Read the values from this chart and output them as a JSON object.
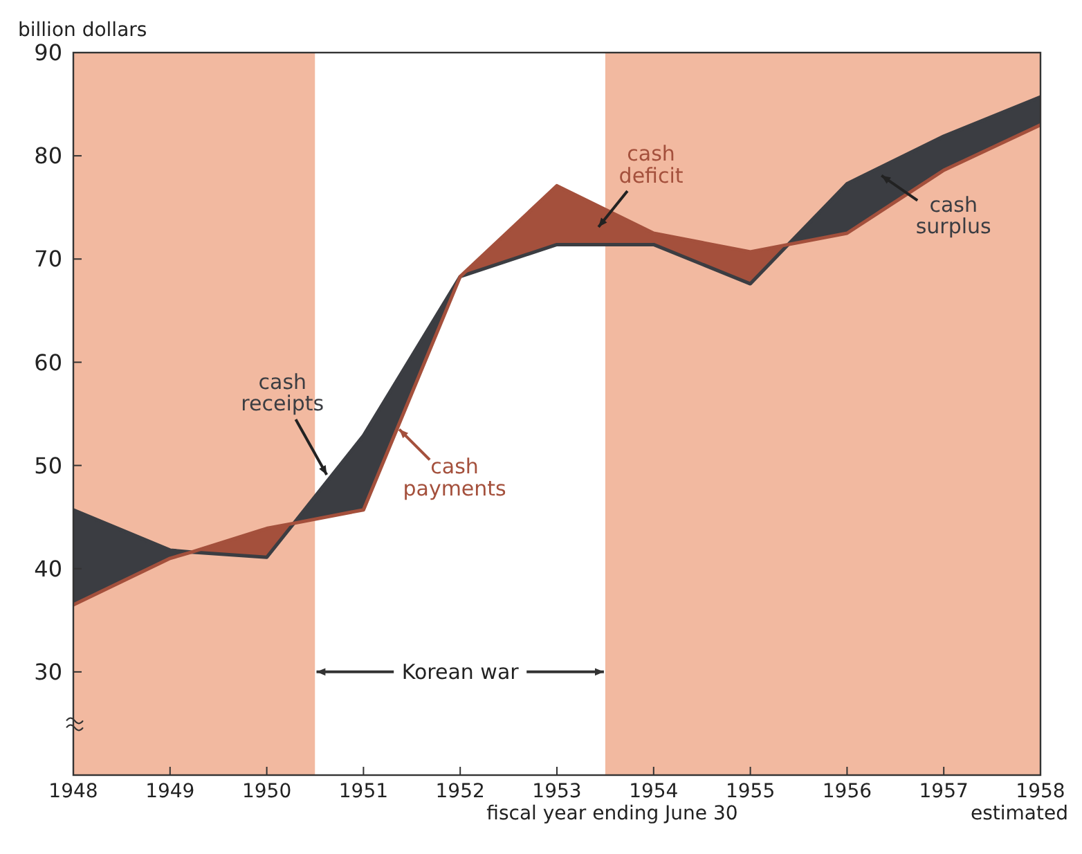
{
  "chart_data": {
    "type": "line",
    "ylabel": "billion dollars",
    "xlabel": "fiscal year ending June 30",
    "x": [
      1948,
      1949,
      1949.22,
      1950,
      1950.28,
      1951,
      1952,
      1953,
      1954,
      1955,
      1955.39,
      1956,
      1957,
      1958
    ],
    "series": [
      {
        "color": "#3b3d42",
        "values": [
          45.7,
          41.8,
          41.6,
          41.1,
          44.4,
          52.9,
          68.3,
          71.4,
          71.4,
          67.6,
          71.4,
          77.3,
          81.9,
          85.7
        ],
        "upper": [
          45.7,
          41.8,
          41.6,
          null,
          44.4,
          52.9,
          68.3,
          null,
          null,
          null,
          71.4,
          77.3,
          81.9,
          85.7
        ],
        "lower": [
          36.5,
          41.0,
          41.6,
          null,
          44.4,
          45.7,
          68.3,
          null,
          null,
          null,
          71.4,
          72.5,
          78.6,
          83.0
        ]
      },
      {
        "color": "#a4503c",
        "values": [
          36.5,
          41.0,
          41.6,
          43.9,
          44.4,
          45.7,
          68.3,
          77.1,
          72.5,
          70.7,
          71.4,
          72.5,
          78.6,
          83.0
        ],
        "upper": [
          null,
          null,
          41.6,
          43.9,
          44.4,
          null,
          68.3,
          77.1,
          72.5,
          70.7,
          71.4,
          null,
          null,
          null
        ],
        "lower": [
          null,
          null,
          41.6,
          41.1,
          44.4,
          null,
          68.3,
          71.4,
          71.4,
          67.6,
          71.4,
          null,
          null,
          null
        ]
      }
    ],
    "xlim": [
      1948,
      1958
    ],
    "xticks": [
      1948,
      1949,
      1950,
      1951,
      1952,
      1953,
      1954,
      1955,
      1956,
      1957,
      1958
    ],
    "ylim": [
      20,
      90
    ],
    "yticks": [
      30,
      40,
      50,
      60,
      70,
      80,
      90
    ],
    "grid": false,
    "bands": [
      {
        "axis": "x",
        "from": 1948,
        "to": 1950.5,
        "color": "#f2b9a0"
      },
      {
        "axis": "x",
        "from": 1950.5,
        "to": 1953.5,
        "color": "#ffffff",
        "label": "Korean war"
      },
      {
        "axis": "x",
        "from": 1953.5,
        "to": 1958,
        "color": "#f2b9a0"
      }
    ],
    "annotations": [
      {
        "text": "cash receipts",
        "x": 1950.62,
        "y": 49.1
      },
      {
        "text": "cash payments",
        "x": 1951.37,
        "y": 53.5
      },
      {
        "text": "cash deficit",
        "x": 1953.43,
        "y": 73.1
      },
      "cash surplus",
      "estimated"
    ]
  }
}
